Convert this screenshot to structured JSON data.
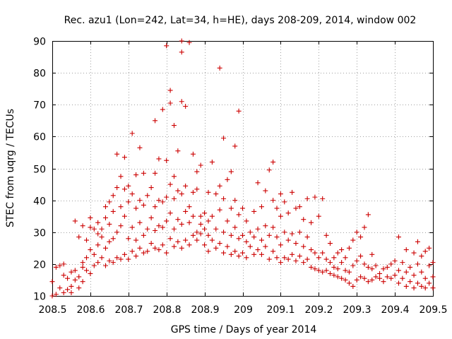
{
  "chart_data": {
    "type": "scatter",
    "title": "Rec. azu1 (Lon=242, Lat=34, h=HE), days 208-209, 2014, window 002",
    "xlabel": "GPS time / Days of year 2014",
    "ylabel": "STEC from uqrg / TECUs",
    "xlim": [
      208.5,
      209.5
    ],
    "ylim": [
      10,
      90
    ],
    "grid": true,
    "marker": "+",
    "color": "#cc0000",
    "x_ticks": [
      "208.5",
      "208.6",
      "208.7",
      "208.8",
      "208.9",
      "209",
      "209.1",
      "209.2",
      "209.3",
      "209.4",
      "209.5"
    ],
    "y_ticks": [
      "10",
      "20",
      "30",
      "40",
      "50",
      "60",
      "70",
      "80",
      "90"
    ],
    "points": [
      [
        208.5,
        14.5
      ],
      [
        208.5,
        10.0
      ],
      [
        208.51,
        19.0
      ],
      [
        208.51,
        10.5
      ],
      [
        208.52,
        12.5
      ],
      [
        208.52,
        19.5
      ],
      [
        208.53,
        16.5
      ],
      [
        208.53,
        11.0
      ],
      [
        208.53,
        20.0
      ],
      [
        208.54,
        12.0
      ],
      [
        208.54,
        15.5
      ],
      [
        208.55,
        17.5
      ],
      [
        208.55,
        13.0
      ],
      [
        208.55,
        11.0
      ],
      [
        208.56,
        18.0
      ],
      [
        208.56,
        15.0
      ],
      [
        208.56,
        33.5
      ],
      [
        208.57,
        16.0
      ],
      [
        208.57,
        12.5
      ],
      [
        208.57,
        28.5
      ],
      [
        208.58,
        19.0
      ],
      [
        208.58,
        14.5
      ],
      [
        208.58,
        32.0
      ],
      [
        208.58,
        20.5
      ],
      [
        208.59,
        18.0
      ],
      [
        208.59,
        22.0
      ],
      [
        208.59,
        27.5
      ],
      [
        208.6,
        17.0
      ],
      [
        208.6,
        31.5
      ],
      [
        208.6,
        24.5
      ],
      [
        208.6,
        34.5
      ],
      [
        208.61,
        19.5
      ],
      [
        208.61,
        23.0
      ],
      [
        208.61,
        31.0
      ],
      [
        208.62,
        20.5
      ],
      [
        208.62,
        26.0
      ],
      [
        208.62,
        29.5
      ],
      [
        208.62,
        33.0
      ],
      [
        208.63,
        22.0
      ],
      [
        208.63,
        28.5
      ],
      [
        208.63,
        31.0
      ],
      [
        208.64,
        19.5
      ],
      [
        208.64,
        25.0
      ],
      [
        208.64,
        34.5
      ],
      [
        208.64,
        38.0
      ],
      [
        208.65,
        21.0
      ],
      [
        208.65,
        27.0
      ],
      [
        208.65,
        32.5
      ],
      [
        208.65,
        39.5
      ],
      [
        208.66,
        20.5
      ],
      [
        208.66,
        28.0
      ],
      [
        208.66,
        36.5
      ],
      [
        208.66,
        41.5
      ],
      [
        208.67,
        22.0
      ],
      [
        208.67,
        30.0
      ],
      [
        208.67,
        44.0
      ],
      [
        208.67,
        54.5
      ],
      [
        208.68,
        21.5
      ],
      [
        208.68,
        32.0
      ],
      [
        208.68,
        38.0
      ],
      [
        208.68,
        47.5
      ],
      [
        208.69,
        23.0
      ],
      [
        208.69,
        35.0
      ],
      [
        208.69,
        43.5
      ],
      [
        208.69,
        53.5
      ],
      [
        208.7,
        21.5
      ],
      [
        208.7,
        28.0
      ],
      [
        208.7,
        39.5
      ],
      [
        208.7,
        44.5
      ],
      [
        208.71,
        24.0
      ],
      [
        208.71,
        31.5
      ],
      [
        208.71,
        42.0
      ],
      [
        208.71,
        61.0
      ],
      [
        208.72,
        22.5
      ],
      [
        208.72,
        27.5
      ],
      [
        208.72,
        37.5
      ],
      [
        208.72,
        48.0
      ],
      [
        208.73,
        25.0
      ],
      [
        208.73,
        33.0
      ],
      [
        208.73,
        40.0
      ],
      [
        208.73,
        56.5
      ],
      [
        208.74,
        23.5
      ],
      [
        208.74,
        29.0
      ],
      [
        208.74,
        38.5
      ],
      [
        208.74,
        48.5
      ],
      [
        208.75,
        24.0
      ],
      [
        208.75,
        31.0
      ],
      [
        208.75,
        41.5
      ],
      [
        208.76,
        26.5
      ],
      [
        208.76,
        34.5
      ],
      [
        208.76,
        44.0
      ],
      [
        208.77,
        25.0
      ],
      [
        208.77,
        30.5
      ],
      [
        208.77,
        38.0
      ],
      [
        208.77,
        48.5
      ],
      [
        208.77,
        65.0
      ],
      [
        208.78,
        24.5
      ],
      [
        208.78,
        32.0
      ],
      [
        208.78,
        40.0
      ],
      [
        208.78,
        53.0
      ],
      [
        208.79,
        26.0
      ],
      [
        208.79,
        31.5
      ],
      [
        208.79,
        39.5
      ],
      [
        208.79,
        68.5
      ],
      [
        208.8,
        23.5
      ],
      [
        208.8,
        33.5
      ],
      [
        208.8,
        41.0
      ],
      [
        208.8,
        52.5
      ],
      [
        208.8,
        88.5
      ],
      [
        208.81,
        28.0
      ],
      [
        208.81,
        36.0
      ],
      [
        208.81,
        45.0
      ],
      [
        208.81,
        70.5
      ],
      [
        208.81,
        74.5
      ],
      [
        208.82,
        25.5
      ],
      [
        208.82,
        31.0
      ],
      [
        208.82,
        40.5
      ],
      [
        208.82,
        47.5
      ],
      [
        208.82,
        63.5
      ],
      [
        208.83,
        27.0
      ],
      [
        208.83,
        34.0
      ],
      [
        208.83,
        43.0
      ],
      [
        208.83,
        55.5
      ],
      [
        208.84,
        25.0
      ],
      [
        208.84,
        32.5
      ],
      [
        208.84,
        42.0
      ],
      [
        208.84,
        71.0
      ],
      [
        208.84,
        86.5
      ],
      [
        208.84,
        90.0
      ],
      [
        208.85,
        27.5
      ],
      [
        208.85,
        36.5
      ],
      [
        208.85,
        44.5
      ],
      [
        208.85,
        69.5
      ],
      [
        208.86,
        26.0
      ],
      [
        208.86,
        33.0
      ],
      [
        208.86,
        38.0
      ],
      [
        208.86,
        89.5
      ],
      [
        208.87,
        29.0
      ],
      [
        208.87,
        35.0
      ],
      [
        208.87,
        42.5
      ],
      [
        208.87,
        54.5
      ],
      [
        208.88,
        27.5
      ],
      [
        208.88,
        30.0
      ],
      [
        208.88,
        43.5
      ],
      [
        208.88,
        49.0
      ],
      [
        208.89,
        29.5
      ],
      [
        208.89,
        32.5
      ],
      [
        208.89,
        35.0
      ],
      [
        208.89,
        51.0
      ],
      [
        208.9,
        26.0
      ],
      [
        208.9,
        31.0
      ],
      [
        208.9,
        36.0
      ],
      [
        208.91,
        24.0
      ],
      [
        208.91,
        29.0
      ],
      [
        208.91,
        33.5
      ],
      [
        208.91,
        42.5
      ],
      [
        208.92,
        27.5
      ],
      [
        208.92,
        35.0
      ],
      [
        208.92,
        52.0
      ],
      [
        208.93,
        25.0
      ],
      [
        208.93,
        31.0
      ],
      [
        208.93,
        42.0
      ],
      [
        208.94,
        26.5
      ],
      [
        208.94,
        37.0
      ],
      [
        208.94,
        44.5
      ],
      [
        208.94,
        81.5
      ],
      [
        208.95,
        23.5
      ],
      [
        208.95,
        30.0
      ],
      [
        208.95,
        40.5
      ],
      [
        208.95,
        59.5
      ],
      [
        208.96,
        25.5
      ],
      [
        208.96,
        33.5
      ],
      [
        208.96,
        46.5
      ],
      [
        208.97,
        23.0
      ],
      [
        208.97,
        29.0
      ],
      [
        208.97,
        37.5
      ],
      [
        208.97,
        49.0
      ],
      [
        208.98,
        24.0
      ],
      [
        208.98,
        31.5
      ],
      [
        208.98,
        40.0
      ],
      [
        208.98,
        57.0
      ],
      [
        208.99,
        22.5
      ],
      [
        208.99,
        28.0
      ],
      [
        208.99,
        35.5
      ],
      [
        208.99,
        68.0
      ],
      [
        209.0,
        23.5
      ],
      [
        209.0,
        29.0
      ],
      [
        209.0,
        37.5
      ],
      [
        209.01,
        22.0
      ],
      [
        209.01,
        27.0
      ],
      [
        209.01,
        33.5
      ],
      [
        209.02,
        25.5
      ],
      [
        209.02,
        30.0
      ],
      [
        209.03,
        23.0
      ],
      [
        209.03,
        28.5
      ],
      [
        209.03,
        36.5
      ],
      [
        209.04,
        24.5
      ],
      [
        209.04,
        31.0
      ],
      [
        209.04,
        45.5
      ],
      [
        209.05,
        23.0
      ],
      [
        209.05,
        27.5
      ],
      [
        209.05,
        38.0
      ],
      [
        209.06,
        25.5
      ],
      [
        209.06,
        32.0
      ],
      [
        209.06,
        43.0
      ],
      [
        209.07,
        21.5
      ],
      [
        209.07,
        29.0
      ],
      [
        209.07,
        49.5
      ],
      [
        209.08,
        24.0
      ],
      [
        209.08,
        31.5
      ],
      [
        209.08,
        40.0
      ],
      [
        209.08,
        52.0
      ],
      [
        209.09,
        22.0
      ],
      [
        209.09,
        28.5
      ],
      [
        209.09,
        37.5
      ],
      [
        209.1,
        20.5
      ],
      [
        209.1,
        26.0
      ],
      [
        209.1,
        35.0
      ],
      [
        209.1,
        42.0
      ],
      [
        209.11,
        22.0
      ],
      [
        209.11,
        30.0
      ],
      [
        209.11,
        39.5
      ],
      [
        209.12,
        21.5
      ],
      [
        209.12,
        27.5
      ],
      [
        209.12,
        36.0
      ],
      [
        209.13,
        23.0
      ],
      [
        209.13,
        29.5
      ],
      [
        209.13,
        42.5
      ],
      [
        209.14,
        21.0
      ],
      [
        209.14,
        26.5
      ],
      [
        209.14,
        37.5
      ],
      [
        209.15,
        22.5
      ],
      [
        209.15,
        30.0
      ],
      [
        209.15,
        38.0
      ],
      [
        209.16,
        20.5
      ],
      [
        209.16,
        25.5
      ],
      [
        209.16,
        34.0
      ],
      [
        209.17,
        21.5
      ],
      [
        209.17,
        28.5
      ],
      [
        209.17,
        40.5
      ],
      [
        209.18,
        19.0
      ],
      [
        209.18,
        24.5
      ],
      [
        209.18,
        33.0
      ],
      [
        209.19,
        18.5
      ],
      [
        209.19,
        23.5
      ],
      [
        209.19,
        41.0
      ],
      [
        209.2,
        18.0
      ],
      [
        209.2,
        22.0
      ],
      [
        209.2,
        35.0
      ],
      [
        209.21,
        17.5
      ],
      [
        209.21,
        23.5
      ],
      [
        209.21,
        40.5
      ],
      [
        209.22,
        18.0
      ],
      [
        209.22,
        21.5
      ],
      [
        209.22,
        29.0
      ],
      [
        209.23,
        17.0
      ],
      [
        209.23,
        20.5
      ],
      [
        209.23,
        26.5
      ],
      [
        209.24,
        16.5
      ],
      [
        209.24,
        19.0
      ],
      [
        209.24,
        22.0
      ],
      [
        209.25,
        16.0
      ],
      [
        209.25,
        18.5
      ],
      [
        209.25,
        23.5
      ],
      [
        209.26,
        15.5
      ],
      [
        209.26,
        20.5
      ],
      [
        209.26,
        24.5
      ],
      [
        209.27,
        15.0
      ],
      [
        209.27,
        18.0
      ],
      [
        209.27,
        22.0
      ],
      [
        209.28,
        14.0
      ],
      [
        209.28,
        17.5
      ],
      [
        209.28,
        25.0
      ],
      [
        209.29,
        13.0
      ],
      [
        209.29,
        19.5
      ],
      [
        209.29,
        27.5
      ],
      [
        209.3,
        15.0
      ],
      [
        209.3,
        21.0
      ],
      [
        209.3,
        30.0
      ],
      [
        209.31,
        16.0
      ],
      [
        209.31,
        22.5
      ],
      [
        209.31,
        28.5
      ],
      [
        209.32,
        15.5
      ],
      [
        209.32,
        20.0
      ],
      [
        209.32,
        31.5
      ],
      [
        209.33,
        14.5
      ],
      [
        209.33,
        19.0
      ],
      [
        209.33,
        35.5
      ],
      [
        209.34,
        15.0
      ],
      [
        209.34,
        18.5
      ],
      [
        209.34,
        23.0
      ],
      [
        209.35,
        16.0
      ],
      [
        209.35,
        19.5
      ],
      [
        209.36,
        15.5
      ],
      [
        209.36,
        17.0
      ],
      [
        209.37,
        14.5
      ],
      [
        209.37,
        18.5
      ],
      [
        209.38,
        16.0
      ],
      [
        209.38,
        19.0
      ],
      [
        209.39,
        15.5
      ],
      [
        209.39,
        20.0
      ],
      [
        209.4,
        16.5
      ],
      [
        209.4,
        21.0
      ],
      [
        209.41,
        14.0
      ],
      [
        209.41,
        18.0
      ],
      [
        209.41,
        28.5
      ],
      [
        209.42,
        15.5
      ],
      [
        209.42,
        20.5
      ],
      [
        209.43,
        13.0
      ],
      [
        209.43,
        17.5
      ],
      [
        209.43,
        24.5
      ],
      [
        209.44,
        14.5
      ],
      [
        209.44,
        19.0
      ],
      [
        209.45,
        12.5
      ],
      [
        209.45,
        16.5
      ],
      [
        209.45,
        23.5
      ],
      [
        209.46,
        14.0
      ],
      [
        209.46,
        20.0
      ],
      [
        209.46,
        27.0
      ],
      [
        209.47,
        13.0
      ],
      [
        209.47,
        17.5
      ],
      [
        209.47,
        22.5
      ],
      [
        209.48,
        12.5
      ],
      [
        209.48,
        15.5
      ],
      [
        209.48,
        24.0
      ],
      [
        209.49,
        14.0
      ],
      [
        209.49,
        19.5
      ],
      [
        209.49,
        25.0
      ],
      [
        209.5,
        12.5
      ],
      [
        209.5,
        16.0
      ],
      [
        209.5,
        20.5
      ]
    ]
  }
}
